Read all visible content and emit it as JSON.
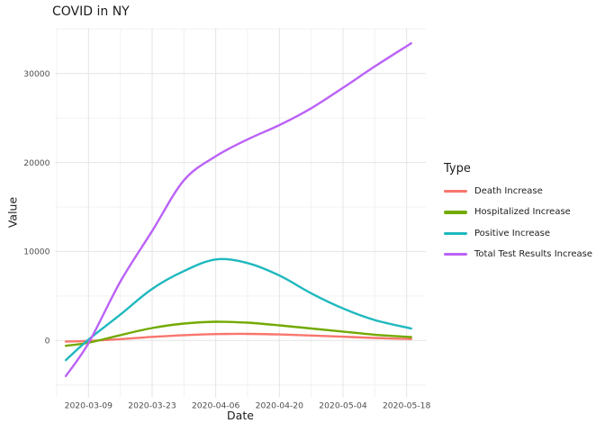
{
  "chart_data": {
    "type": "line",
    "title": "COVID in NY",
    "xlabel": "Date",
    "ylabel": "Value",
    "legend_title": "Type",
    "legend_position": "right",
    "grid": true,
    "background": "#ffffff",
    "major_grid_color": "#e4e4e4",
    "minor_grid_color": "#f2f2f2",
    "tick_label_color": "#4d4d4d",
    "x_ticks": [
      "2020-03-09",
      "2020-03-23",
      "2020-04-06",
      "2020-04-20",
      "2020-05-04",
      "2020-05-18"
    ],
    "y_ticks": [
      0,
      10000,
      20000,
      30000
    ],
    "y_minor_ticks": [
      -5000,
      5000,
      15000,
      25000,
      35000
    ],
    "xlim": [
      "2020-03-02",
      "2020-05-22"
    ],
    "ylim": [
      -6300,
      35300
    ],
    "x": [
      "2020-03-04",
      "2020-03-09",
      "2020-03-16",
      "2020-03-23",
      "2020-03-30",
      "2020-04-06",
      "2020-04-13",
      "2020-04-20",
      "2020-04-27",
      "2020-05-04",
      "2020-05-11",
      "2020-05-19"
    ],
    "series": [
      {
        "name": "Death Increase",
        "color": "#f8766d",
        "values": [
          -120,
          -50,
          150,
          400,
          600,
          720,
          740,
          680,
          560,
          420,
          280,
          160
        ]
      },
      {
        "name": "Hospitalized Increase",
        "color": "#72aa00",
        "values": [
          -600,
          -250,
          600,
          1400,
          1900,
          2100,
          2000,
          1700,
          1350,
          1000,
          650,
          380
        ]
      },
      {
        "name": "Positive Increase",
        "color": "#1eb8be",
        "values": [
          -2200,
          100,
          2900,
          5800,
          7800,
          9100,
          8700,
          7300,
          5300,
          3600,
          2300,
          1350
        ]
      },
      {
        "name": "Total Test Results Increase",
        "color": "#bb62f6",
        "values": [
          -4000,
          -300,
          6600,
          12300,
          18000,
          20700,
          22600,
          24200,
          26100,
          28400,
          30800,
          33400
        ]
      }
    ]
  }
}
